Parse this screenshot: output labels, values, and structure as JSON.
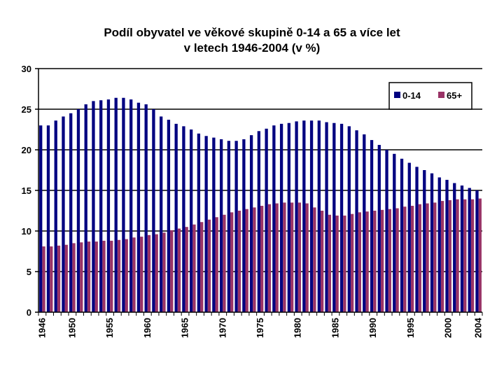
{
  "chart_data": {
    "type": "bar",
    "title_line1": "Podíl obyvatel ve věkové skupině 0-14 a 65 a více let",
    "title_line2": "v letech 1946-2004 (v %)",
    "xlabel": "",
    "ylabel": "",
    "ylim": [
      0,
      30
    ],
    "yticks": [
      0,
      5,
      10,
      15,
      20,
      25,
      30
    ],
    "grid": true,
    "legend_position": "top-right",
    "categories": [
      1946,
      1947,
      1948,
      1949,
      1950,
      1951,
      1952,
      1953,
      1954,
      1955,
      1956,
      1957,
      1958,
      1959,
      1960,
      1961,
      1962,
      1963,
      1964,
      1965,
      1966,
      1967,
      1968,
      1969,
      1970,
      1971,
      1972,
      1973,
      1974,
      1975,
      1976,
      1977,
      1978,
      1979,
      1980,
      1981,
      1982,
      1983,
      1984,
      1985,
      1986,
      1987,
      1988,
      1989,
      1990,
      1991,
      1992,
      1993,
      1994,
      1995,
      1996,
      1997,
      1998,
      1999,
      2000,
      2001,
      2002,
      2003,
      2004
    ],
    "x_tick_labels": [
      "1946",
      "1950",
      "1955",
      "1960",
      "1965",
      "1970",
      "1975",
      "1980",
      "1985",
      "1990",
      "1995",
      "2000",
      "2004"
    ],
    "series": [
      {
        "name": "0-14",
        "color": "#000080",
        "values": [
          23.0,
          23.0,
          23.6,
          24.1,
          24.5,
          25.0,
          25.6,
          26.0,
          26.1,
          26.2,
          26.4,
          26.4,
          26.2,
          25.8,
          25.6,
          25.0,
          24.1,
          23.7,
          23.2,
          22.9,
          22.5,
          22.0,
          21.7,
          21.5,
          21.3,
          21.1,
          21.1,
          21.3,
          21.8,
          22.3,
          22.6,
          23.0,
          23.2,
          23.3,
          23.5,
          23.6,
          23.6,
          23.6,
          23.4,
          23.3,
          23.2,
          22.9,
          22.4,
          21.9,
          21.2,
          20.6,
          20.0,
          19.5,
          18.9,
          18.4,
          17.9,
          17.5,
          17.1,
          16.6,
          16.3,
          15.9,
          15.6,
          15.3,
          15.0
        ]
      },
      {
        "name": "65+",
        "color": "#993366",
        "values": [
          8.1,
          8.1,
          8.2,
          8.3,
          8.5,
          8.6,
          8.7,
          8.7,
          8.8,
          8.8,
          8.9,
          9.0,
          9.2,
          9.3,
          9.5,
          9.6,
          9.8,
          10.1,
          10.3,
          10.5,
          10.8,
          11.1,
          11.4,
          11.7,
          12.0,
          12.3,
          12.5,
          12.7,
          12.9,
          13.1,
          13.3,
          13.4,
          13.5,
          13.5,
          13.5,
          13.4,
          12.9,
          12.5,
          12.0,
          11.9,
          11.9,
          12.1,
          12.3,
          12.4,
          12.5,
          12.6,
          12.7,
          12.8,
          13.0,
          13.1,
          13.3,
          13.4,
          13.5,
          13.7,
          13.8,
          13.9,
          13.9,
          13.9,
          14.0
        ]
      }
    ]
  }
}
